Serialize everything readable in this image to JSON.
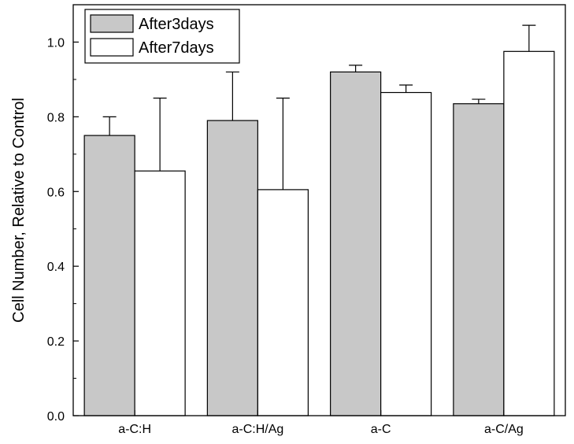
{
  "chart_data": {
    "type": "bar",
    "title": "",
    "xlabel": "",
    "ylabel": "Cell Number, Relative to Control",
    "categories": [
      "a-C:H",
      "a-C:H/Ag",
      "a-C",
      "a-C/Ag"
    ],
    "series": [
      {
        "name": "After3days",
        "values": [
          0.75,
          0.79,
          0.92,
          0.835
        ],
        "errors": [
          0.05,
          0.13,
          0.018,
          0.012
        ],
        "color": "#c8c8c8"
      },
      {
        "name": "After7days",
        "values": [
          0.655,
          0.605,
          0.865,
          0.975
        ],
        "errors": [
          0.195,
          0.245,
          0.02,
          0.07
        ],
        "color": "#ffffff"
      }
    ],
    "ylim": [
      0,
      1.1
    ],
    "yticks": [
      "0.0",
      "0.2",
      "0.4",
      "0.6",
      "0.8",
      "1.0"
    ],
    "grid": false,
    "legend_position": "top-left",
    "error_bars": "upper"
  }
}
